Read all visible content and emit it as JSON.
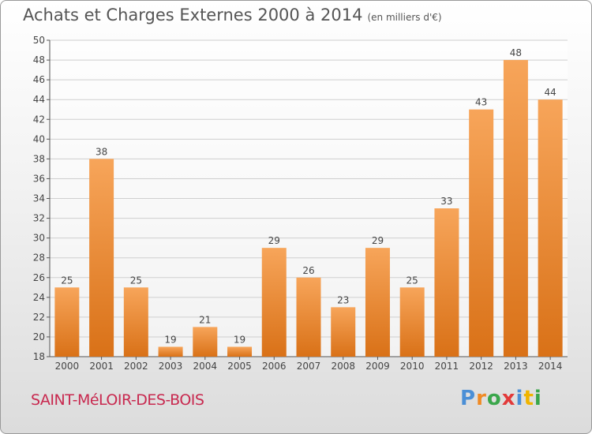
{
  "title": "Achats et Charges Externes 2000 à 2014",
  "subtitle": "(en milliers d'€)",
  "place": "SAINT-MéLOIR-DES-BOIS",
  "logo": {
    "letters": [
      "P",
      "r",
      "o",
      "x",
      "i",
      "t",
      "i"
    ],
    "colors": [
      "#4b8fd6",
      "#f08a24",
      "#3aa64b",
      "#e23a3a",
      "#4b8fd6",
      "#f0b400",
      "#3aa64b"
    ]
  },
  "colors": {
    "bar_light": "#f7a55a",
    "bar_dark": "#d97117",
    "grid": "#cfcfcf",
    "axis": "#555555"
  },
  "chart_data": {
    "type": "bar",
    "title": "Achats et Charges Externes 2000 à 2014",
    "subtitle": "(en milliers d'€)",
    "xlabel": "",
    "ylabel": "",
    "ylim": [
      18,
      50
    ],
    "yticks": [
      18,
      20,
      22,
      24,
      26,
      28,
      30,
      32,
      34,
      36,
      38,
      40,
      42,
      44,
      46,
      48,
      50
    ],
    "grid": true,
    "categories": [
      "2000",
      "2001",
      "2002",
      "2003",
      "2004",
      "2005",
      "2006",
      "2007",
      "2008",
      "2009",
      "2010",
      "2011",
      "2012",
      "2013",
      "2014"
    ],
    "values": [
      25,
      38,
      25,
      19,
      21,
      19,
      29,
      26,
      23,
      29,
      25,
      33,
      43,
      48,
      44
    ]
  }
}
